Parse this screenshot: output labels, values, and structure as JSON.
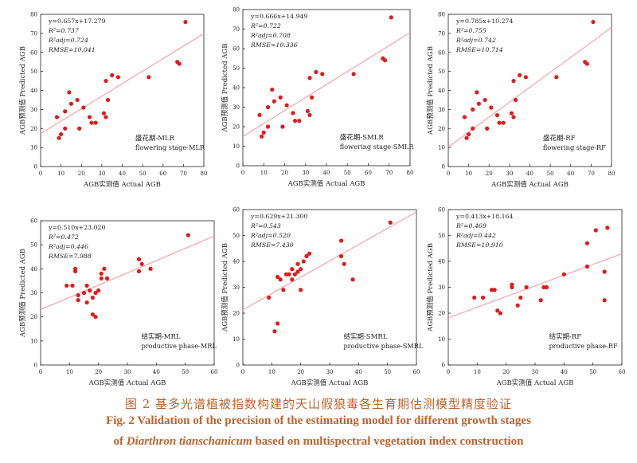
{
  "caption": {
    "cn": "图 2   基多光谱植被指数构建的天山假狼毒各生育期估测模型精度验证",
    "en_line1": "Fig. 2    Validation of the precision of the estimating model for different growth stages",
    "en_line2_prefix": "of",
    "en_line2_species": "Diarthron tianschanicum",
    "en_line2_suffix": "based on multispectral vegetation index construction"
  },
  "colors": {
    "point": "#e01b1b",
    "fitline": "#f4a6a6",
    "axis": "#222222",
    "caption": "#c0622c"
  },
  "chart_data": [
    {
      "type": "scatter",
      "xlabel": "AGB实测值 Actual AGB",
      "ylabel": "AGB预测值 Predicted AGB",
      "xlim": [
        0,
        80
      ],
      "ylim": [
        0,
        80
      ],
      "xticks": [
        0,
        10,
        20,
        30,
        40,
        50,
        60,
        70,
        80
      ],
      "yticks": [
        0,
        10,
        20,
        30,
        40,
        50,
        60,
        70,
        80
      ],
      "fit": {
        "slope": 0.657,
        "intercept": 17.279
      },
      "stats": [
        "y=0.657x+17.279",
        "R²=0.737",
        "R²adj=0.724",
        "RMSE=10.041"
      ],
      "label_cn": "盛花期-MLR",
      "label_en": "flowering stage-MLR",
      "points": [
        [
          8,
          26
        ],
        [
          9,
          15
        ],
        [
          10,
          17
        ],
        [
          12,
          20
        ],
        [
          12,
          29
        ],
        [
          14,
          39
        ],
        [
          15,
          33
        ],
        [
          18,
          35
        ],
        [
          19,
          20
        ],
        [
          21,
          31
        ],
        [
          24,
          26
        ],
        [
          25,
          23
        ],
        [
          27,
          23
        ],
        [
          31,
          28
        ],
        [
          32,
          45
        ],
        [
          32,
          26
        ],
        [
          33,
          35
        ],
        [
          35,
          48
        ],
        [
          38,
          47
        ],
        [
          53,
          47
        ],
        [
          67,
          55
        ],
        [
          68,
          54
        ],
        [
          71,
          76
        ]
      ]
    },
    {
      "type": "scatter",
      "xlabel": "AGB实测值 Actual AGB",
      "ylabel": "AGB预测值 Predicted AGB",
      "xlim": [
        0,
        80
      ],
      "ylim": [
        0,
        80
      ],
      "xticks": [
        0,
        10,
        20,
        30,
        40,
        50,
        60,
        70,
        80
      ],
      "yticks": [
        0,
        10,
        20,
        30,
        40,
        50,
        60,
        70,
        80
      ],
      "fit": {
        "slope": 0.666,
        "intercept": 14.949
      },
      "stats": [
        "y=0.666x+14.949",
        "R²=0.722",
        "R²adj=0.708",
        "RMSE=10.336"
      ],
      "label_cn": "盛花期-SMLR",
      "label_en": "flowering stage-SMLR",
      "points": [
        [
          8,
          26
        ],
        [
          9,
          15
        ],
        [
          10,
          17
        ],
        [
          12,
          20
        ],
        [
          12,
          30
        ],
        [
          14,
          39
        ],
        [
          15,
          33
        ],
        [
          18,
          35
        ],
        [
          19,
          20
        ],
        [
          21,
          31
        ],
        [
          24,
          27
        ],
        [
          25,
          23
        ],
        [
          27,
          23
        ],
        [
          31,
          28
        ],
        [
          32,
          45
        ],
        [
          32,
          26
        ],
        [
          33,
          35
        ],
        [
          35,
          48
        ],
        [
          38,
          47
        ],
        [
          53,
          47
        ],
        [
          67,
          55
        ],
        [
          68,
          54
        ],
        [
          71,
          76
        ]
      ]
    },
    {
      "type": "scatter",
      "xlabel": "AGB实测值 Actual AGB",
      "ylabel": "AGB预测值 Predicted AGB",
      "xlim": [
        0,
        80
      ],
      "ylim": [
        0,
        80
      ],
      "xticks": [
        0,
        10,
        20,
        30,
        40,
        50,
        60,
        70,
        80
      ],
      "yticks": [
        0,
        10,
        20,
        30,
        40,
        50,
        60,
        70,
        80
      ],
      "fit": {
        "slope": 0.785,
        "intercept": 10.274
      },
      "stats": [
        "y=0.785x+10.274",
        "R²=0.755",
        "R²adj=0.742",
        "RMSE=10.714"
      ],
      "label_cn": "盛花期-RF",
      "label_en": "flowering stage-RF",
      "points": [
        [
          8,
          26
        ],
        [
          9,
          15
        ],
        [
          10,
          17
        ],
        [
          12,
          20
        ],
        [
          12,
          30
        ],
        [
          14,
          39
        ],
        [
          15,
          33
        ],
        [
          18,
          35
        ],
        [
          19,
          20
        ],
        [
          21,
          31
        ],
        [
          24,
          27
        ],
        [
          25,
          23
        ],
        [
          27,
          23
        ],
        [
          31,
          28
        ],
        [
          32,
          45
        ],
        [
          32,
          26
        ],
        [
          33,
          35
        ],
        [
          35,
          48
        ],
        [
          38,
          47
        ],
        [
          53,
          47
        ],
        [
          67,
          55
        ],
        [
          68,
          54
        ],
        [
          71,
          76
        ]
      ]
    },
    {
      "type": "scatter",
      "xlabel": "AGB实测值 Actual AGB",
      "ylabel": "AGB预测值 Predicted AGB",
      "xlim": [
        0,
        60
      ],
      "ylim": [
        0,
        60
      ],
      "xticks": [
        0,
        10,
        20,
        30,
        40,
        50,
        60
      ],
      "yticks": [
        0,
        10,
        20,
        30,
        40,
        50,
        60
      ],
      "fit": {
        "slope": 0.51,
        "intercept": 23.02
      },
      "stats": [
        "y=0.510x+23.020",
        "R²=0.472",
        "R²adj=0.446",
        "RMSE=7.988"
      ],
      "label_cn": "结实期-MRL",
      "label_en": "productive phase-MRL",
      "points": [
        [
          9,
          33
        ],
        [
          11,
          33
        ],
        [
          12,
          39
        ],
        [
          12,
          40
        ],
        [
          13,
          27
        ],
        [
          13,
          29
        ],
        [
          15,
          30
        ],
        [
          16,
          26
        ],
        [
          16,
          33
        ],
        [
          17,
          31
        ],
        [
          18,
          28
        ],
        [
          18,
          21
        ],
        [
          19,
          20
        ],
        [
          19,
          30
        ],
        [
          20,
          31
        ],
        [
          21,
          36
        ],
        [
          21,
          38
        ],
        [
          22,
          40
        ],
        [
          23,
          36
        ],
        [
          34,
          44
        ],
        [
          34,
          39
        ],
        [
          35,
          42
        ],
        [
          38,
          40
        ],
        [
          51,
          54
        ]
      ]
    },
    {
      "type": "scatter",
      "xlabel": "AGB实测值 Actual AGB",
      "ylabel": "AGB预测值 Predicted AGB",
      "xlim": [
        0,
        60
      ],
      "ylim": [
        0,
        60
      ],
      "xticks": [
        0,
        10,
        20,
        30,
        40,
        50,
        60
      ],
      "yticks": [
        0,
        10,
        20,
        30,
        40,
        50,
        60
      ],
      "fit": {
        "slope": 0.629,
        "intercept": 21.3
      },
      "stats": [
        "y=0.629x+21.300",
        "R²=0.543",
        "R²adj=0.520",
        "RMSE=7.430"
      ],
      "label_cn": "结实期-SMRL",
      "label_en": "productive phase-SMRL",
      "points": [
        [
          9,
          26
        ],
        [
          11,
          13
        ],
        [
          12,
          16
        ],
        [
          12,
          34
        ],
        [
          13,
          33
        ],
        [
          14,
          29
        ],
        [
          15,
          35
        ],
        [
          16,
          35
        ],
        [
          17,
          33
        ],
        [
          17,
          37
        ],
        [
          18,
          35
        ],
        [
          19,
          36
        ],
        [
          19,
          39
        ],
        [
          20,
          29
        ],
        [
          20,
          37
        ],
        [
          21,
          40
        ],
        [
          22,
          42
        ],
        [
          23,
          43
        ],
        [
          34,
          48
        ],
        [
          34,
          42
        ],
        [
          35,
          39
        ],
        [
          38,
          33
        ],
        [
          51,
          55
        ]
      ]
    },
    {
      "type": "scatter",
      "xlabel": "AGB实测值 Actual AGB",
      "ylabel": "AGB预测值 Predicted AGB",
      "xlim": [
        0,
        60
      ],
      "ylim": [
        0,
        60
      ],
      "xticks": [
        0,
        10,
        20,
        30,
        40,
        50,
        60
      ],
      "yticks": [
        0,
        10,
        20,
        30,
        40,
        50,
        60
      ],
      "fit": {
        "slope": 0.413,
        "intercept": 18.164
      },
      "stats": [
        "y=0.413x+18.164",
        "R²=0.469",
        "R²adj=0.442",
        "RMSE=10.910"
      ],
      "label_cn": "结实期-RF",
      "label_en": "productive phase-RF",
      "points": [
        [
          9,
          26
        ],
        [
          12,
          26
        ],
        [
          15,
          29
        ],
        [
          16,
          29
        ],
        [
          17,
          21
        ],
        [
          18,
          20
        ],
        [
          22,
          31
        ],
        [
          22,
          30
        ],
        [
          24,
          23
        ],
        [
          25,
          26
        ],
        [
          27,
          30
        ],
        [
          32,
          25
        ],
        [
          33,
          30
        ],
        [
          34,
          30
        ],
        [
          40,
          35
        ],
        [
          48,
          47
        ],
        [
          48,
          38
        ],
        [
          51,
          52
        ],
        [
          54,
          36
        ],
        [
          54,
          25
        ],
        [
          55,
          53
        ]
      ]
    }
  ]
}
